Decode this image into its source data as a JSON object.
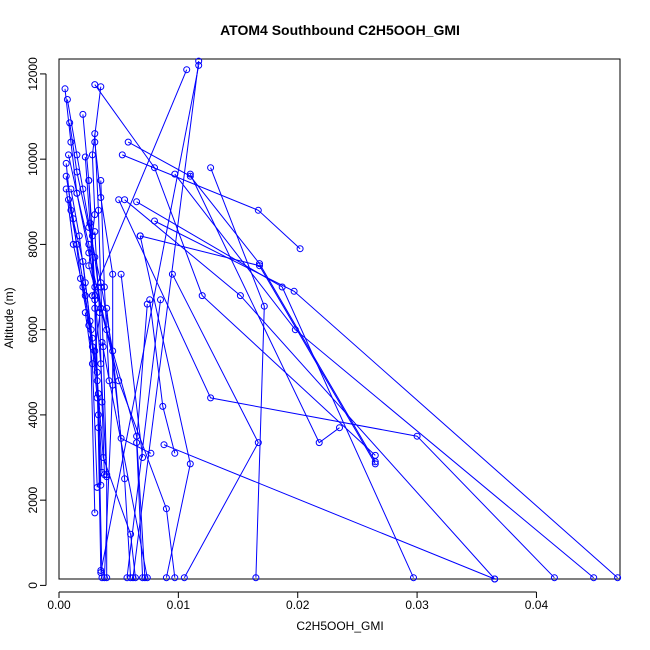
{
  "chart_data": {
    "type": "line",
    "title": "ATOM4 Southbound C2H5OOH_GMI",
    "xlabel": "C2H5OOH_GMI",
    "ylabel": "Altitude (m)",
    "xlim": [
      0.0,
      0.047
    ],
    "ylim": [
      150,
      12350
    ],
    "xticks": [
      0.0,
      0.01,
      0.02,
      0.03,
      0.04
    ],
    "xtick_labels": [
      "0.00",
      "0.01",
      "0.02",
      "0.03",
      "0.04"
    ],
    "yticks": [
      0,
      2000,
      4000,
      6000,
      8000,
      10000,
      12000
    ],
    "ytick_labels": [
      "0",
      "2000",
      "4000",
      "6000",
      "8000",
      "10000",
      "12000"
    ],
    "grid": false,
    "legend": "none",
    "color": "#0000ff",
    "series": [
      {
        "x": [
          0.0035,
          0.0028,
          0.003,
          0.0025,
          0.0035,
          0.003,
          0.0033,
          0.0037,
          0.006,
          0.0064
        ],
        "y": [
          11700,
          10100,
          8700,
          7500,
          6500,
          5500,
          4500,
          3000,
          1200,
          180
        ]
      },
      {
        "x": [
          0.0005,
          0.001,
          0.0015,
          0.0025,
          0.004,
          0.0065,
          0.0072
        ],
        "y": [
          11650,
          10400,
          9200,
          7800,
          6000,
          3500,
          180
        ]
      },
      {
        "x": [
          0.0007,
          0.0015,
          0.002,
          0.003,
          0.0035,
          0.005,
          0.009,
          0.0097
        ],
        "y": [
          11400,
          10100,
          9300,
          7700,
          6500,
          4800,
          1800,
          180
        ]
      },
      {
        "x": [
          0.0009,
          0.0015,
          0.0025,
          0.0035,
          0.0045,
          0.0055,
          0.006
        ],
        "y": [
          10850,
          9700,
          8400,
          7100,
          5500,
          2500,
          180
        ]
      },
      {
        "x": [
          0.002,
          0.0025,
          0.003,
          0.0033,
          0.0036
        ],
        "y": [
          11050,
          9500,
          7000,
          4000,
          180
        ]
      },
      {
        "x": [
          0.003,
          0.0033,
          0.0035,
          0.0037,
          0.004,
          0.004
        ],
        "y": [
          10600,
          8800,
          7000,
          5600,
          2600,
          180
        ]
      },
      {
        "x": [
          0.003,
          0.0035,
          0.0045,
          0.0045,
          0.0038
        ],
        "y": [
          10400,
          9100,
          7300,
          4700,
          180
        ]
      },
      {
        "x": [
          0.0008,
          0.0015,
          0.0025,
          0.003,
          0.0035,
          0.004
        ],
        "y": [
          10100,
          9200,
          8000,
          6800,
          5200,
          2550
        ]
      },
      {
        "x": [
          0.0022,
          0.0026,
          0.003,
          0.0035
        ],
        "y": [
          10050,
          8500,
          6700,
          2350
        ]
      },
      {
        "x": [
          0.0006,
          0.001,
          0.002,
          0.0026,
          0.003
        ],
        "y": [
          9900,
          8800,
          7600,
          6200,
          1700
        ]
      },
      {
        "x": [
          0.0006,
          0.0012,
          0.0018,
          0.0025,
          0.0032,
          0.0035
        ],
        "y": [
          9600,
          8600,
          7200,
          6100,
          5000,
          350
        ]
      },
      {
        "x": [
          0.001,
          0.0017,
          0.0022,
          0.0027,
          0.0032,
          0.0036
        ],
        "y": [
          9300,
          8200,
          7100,
          6000,
          4800,
          2650
        ]
      },
      {
        "x": [
          0.0008,
          0.0015,
          0.0022,
          0.0028,
          0.0032
        ],
        "y": [
          9050,
          8000,
          6800,
          5600,
          4400
        ]
      },
      {
        "x": [
          0.0006,
          0.0012,
          0.002,
          0.0028
        ],
        "y": [
          9300,
          8000,
          7000,
          5800
        ]
      },
      {
        "x": [
          0.0025,
          0.0028,
          0.003,
          0.0033
        ],
        "y": [
          9500,
          8200,
          6500,
          3700
        ]
      },
      {
        "x": [
          0.0035,
          0.0038,
          0.0042
        ],
        "y": [
          9500,
          7000,
          4800
        ]
      },
      {
        "x": [
          0.003,
          0.0034,
          0.0036,
          0.0038
        ],
        "y": [
          8300,
          6400,
          4300,
          2600
        ]
      },
      {
        "x": [
          0.0022,
          0.0028,
          0.0032
        ],
        "y": [
          6400,
          5200,
          2300
        ]
      },
      {
        "x": [
          0.0117,
          0.0062
        ],
        "y": [
          12300,
          180
        ]
      },
      {
        "x": [
          0.0117,
          0.0035
        ],
        "y": [
          12200,
          300
        ]
      },
      {
        "x": [
          0.0107,
          0.0028
        ],
        "y": [
          12100,
          6800
        ]
      },
      {
        "x": [
          0.003,
          0.008,
          0.012,
          0.0265
        ],
        "y": [
          11750,
          9800,
          6800,
          3050
        ]
      },
      {
        "x": [
          0.0058,
          0.011,
          0.0168,
          0.0265
        ],
        "y": [
          10400,
          9600,
          7550,
          2900
        ]
      },
      {
        "x": [
          0.0053,
          0.0167,
          0.0202
        ],
        "y": [
          10100,
          8800,
          7900
        ]
      },
      {
        "x": [
          0.0055,
          0.0152,
          0.0365
        ],
        "y": [
          9050,
          6800,
          150
        ]
      },
      {
        "x": [
          0.0065,
          0.0187,
          0.0297
        ],
        "y": [
          9000,
          7000,
          180
        ]
      },
      {
        "x": [
          0.0068,
          0.0168,
          0.0265
        ],
        "y": [
          8200,
          7500,
          2850
        ]
      },
      {
        "x": [
          0.008,
          0.0197,
          0.0468
        ],
        "y": [
          8550,
          6900,
          180
        ]
      },
      {
        "x": [
          0.005,
          0.0127,
          0.03,
          0.0415
        ],
        "y": [
          9050,
          4400,
          3500,
          180
        ]
      },
      {
        "x": [
          0.0097,
          0.0198,
          0.0448
        ],
        "y": [
          9650,
          6000,
          180
        ]
      },
      {
        "x": [
          0.011,
          0.0218,
          0.0235
        ],
        "y": [
          9650,
          3350,
          3700
        ]
      },
      {
        "x": [
          0.0127,
          0.0172,
          0.0165
        ],
        "y": [
          9800,
          6550,
          180
        ]
      },
      {
        "x": [
          0.0088,
          0.0365
        ],
        "y": [
          3300,
          150
        ]
      },
      {
        "x": [
          0.0076,
          0.0087,
          0.0097
        ],
        "y": [
          6700,
          4200,
          3100
        ]
      },
      {
        "x": [
          0.0095,
          0.0167,
          0.0105
        ],
        "y": [
          7300,
          3350,
          180
        ]
      },
      {
        "x": [
          0.0085,
          0.0057
        ],
        "y": [
          6700,
          180
        ]
      },
      {
        "x": [
          0.0074,
          0.0065,
          0.007
        ],
        "y": [
          6600,
          3350,
          180
        ]
      },
      {
        "x": [
          0.0052,
          0.007
        ],
        "y": [
          7300,
          3000
        ]
      },
      {
        "x": [
          0.0068,
          0.011,
          0.009
        ],
        "y": [
          8200,
          2850,
          180
        ]
      },
      {
        "x": [
          0.004,
          0.0052,
          0.0077
        ],
        "y": [
          6500,
          3450,
          3100
        ]
      },
      {
        "x": [
          0.0036,
          0.0074
        ],
        "y": [
          5700,
          180
        ]
      }
    ]
  }
}
